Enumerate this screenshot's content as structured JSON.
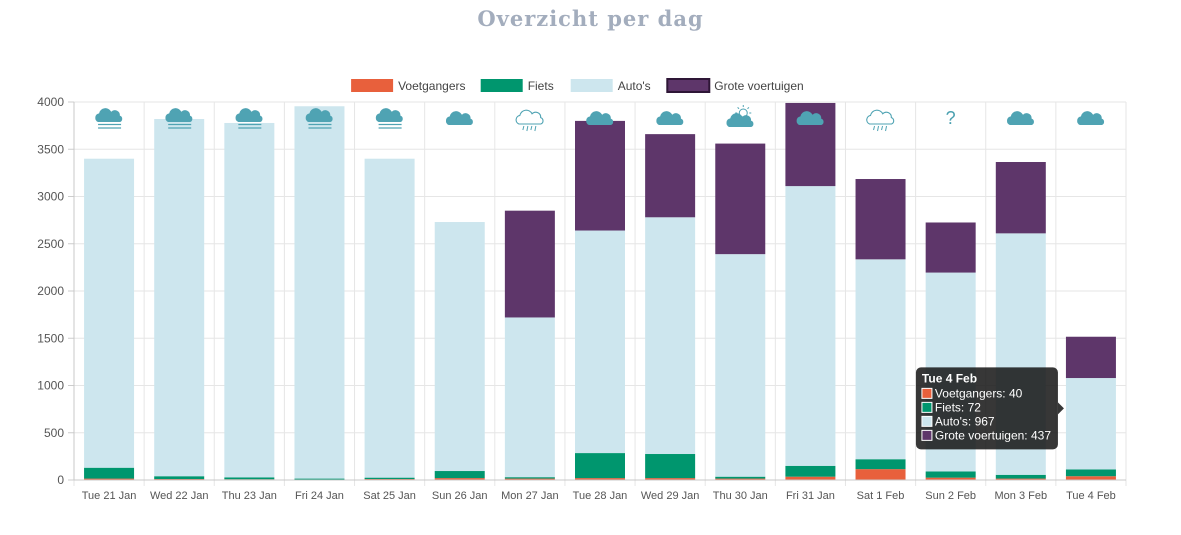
{
  "chart_data": {
    "type": "bar",
    "stacked": true,
    "title": "Overzicht per dag",
    "xlabel": "",
    "ylabel": "",
    "ylim": [
      0,
      4000
    ],
    "yticks": [
      0,
      500,
      1000,
      1500,
      2000,
      2500,
      3000,
      3500,
      4000
    ],
    "legend_position": "top-center",
    "grid": true,
    "categories": [
      "Tue 21 Jan",
      "Wed 22 Jan",
      "Thu 23 Jan",
      "Fri 24 Jan",
      "Sat 25 Jan",
      "Sun 26 Jan",
      "Mon 27 Jan",
      "Tue 28 Jan",
      "Wed 29 Jan",
      "Thu 30 Jan",
      "Fri 31 Jan",
      "Sat 1 Feb",
      "Sun 2 Feb",
      "Mon 3 Feb",
      "Tue 4 Feb"
    ],
    "series": [
      {
        "name": "Voetgangers",
        "color": "#e8603c",
        "values": [
          15,
          10,
          8,
          5,
          10,
          20,
          15,
          20,
          20,
          15,
          35,
          115,
          25,
          15,
          40
        ]
      },
      {
        "name": "Fiets",
        "color": "#00966e",
        "values": [
          115,
          30,
          20,
          10,
          15,
          75,
          15,
          265,
          255,
          20,
          115,
          105,
          65,
          40,
          72
        ]
      },
      {
        "name": "Auto's",
        "color": "#cde6ee",
        "values": [
          3270,
          3780,
          3750,
          3940,
          3375,
          2635,
          1690,
          2355,
          2505,
          2355,
          2960,
          2115,
          2105,
          2555,
          967
        ]
      },
      {
        "name": "Grote voertuigen",
        "color": "#5e366a",
        "values": [
          0,
          0,
          0,
          0,
          0,
          0,
          1130,
          1160,
          880,
          1170,
          880,
          850,
          530,
          755,
          437
        ]
      }
    ],
    "weather": [
      "fog",
      "fog",
      "fog",
      "fog",
      "fog",
      "cloud",
      "rain",
      "cloud",
      "cloud",
      "partly-sunny",
      "cloud",
      "rain",
      "unknown",
      "cloud",
      "cloud"
    ],
    "weather_unknown_label": "?",
    "tooltip": {
      "category_index": 14,
      "title": "Tue 4 Feb",
      "lines": [
        "Voetgangers: 40",
        "Fiets: 72",
        "Auto's: 967",
        "Grote voertuigen: 437"
      ]
    }
  }
}
